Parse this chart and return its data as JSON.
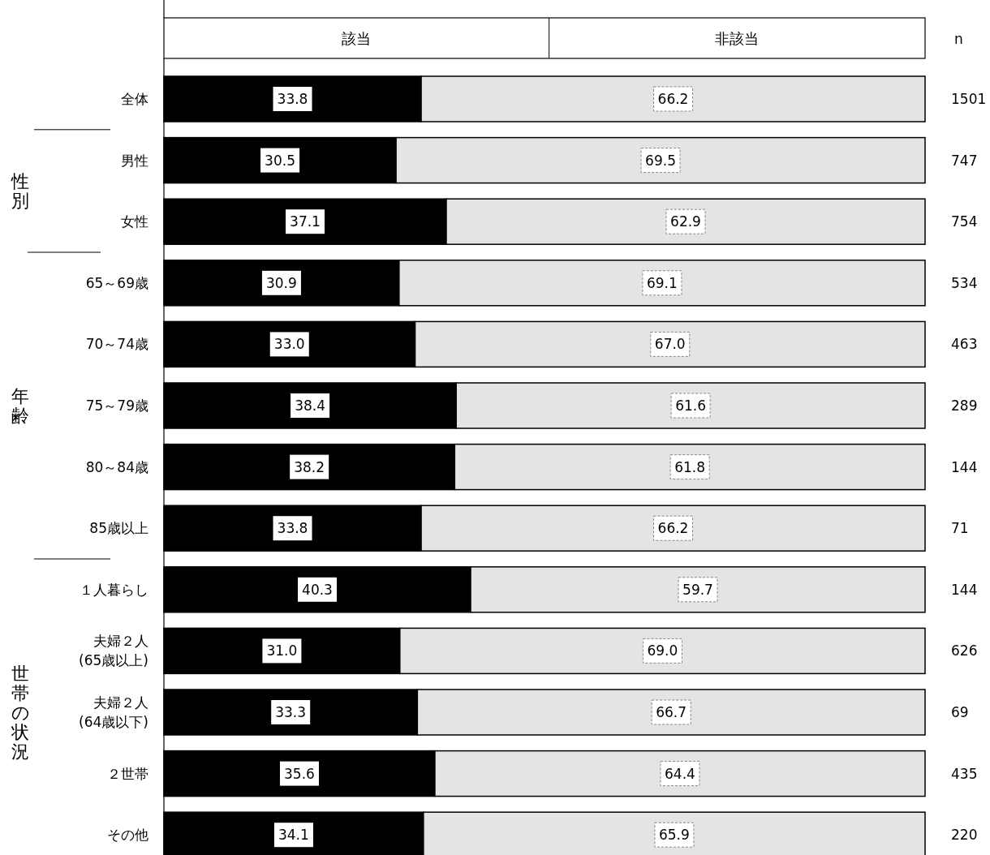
{
  "chart_data": {
    "type": "bar",
    "orientation": "horizontal",
    "stacked": true,
    "legend": "top",
    "xlim": [
      0,
      100
    ],
    "categories": [
      "全体",
      "男性",
      "女性",
      "65～69歳",
      "70～74歳",
      "75～79歳",
      "80～84歳",
      "85歳以上",
      "１人暮らし",
      "夫婦２人\n(65歳以上)",
      "夫婦２人\n(64歳以下)",
      "２世帯",
      "その他"
    ],
    "series": [
      {
        "name": "該当",
        "color": "#000000",
        "values": [
          33.8,
          30.5,
          37.1,
          30.9,
          33.0,
          38.4,
          38.2,
          33.8,
          40.3,
          31.0,
          33.3,
          35.6,
          34.1
        ],
        "value_labels": [
          "33.8",
          "30.5",
          "37.1",
          "30.9",
          "33.0",
          "38.4",
          "38.2",
          "33.8",
          "40.3",
          "31.0",
          "33.3",
          "35.6",
          "34.1"
        ]
      },
      {
        "name": "非該当",
        "color": "#e4e4e4",
        "values": [
          66.2,
          69.5,
          62.9,
          69.1,
          67.0,
          61.6,
          61.8,
          66.2,
          59.7,
          69.0,
          66.7,
          64.4,
          65.9
        ],
        "value_labels": [
          "66.2",
          "69.5",
          "62.9",
          "69.1",
          "67.0",
          "61.6",
          "61.8",
          "66.2",
          "59.7",
          "69.0",
          "66.7",
          "64.4",
          "65.9"
        ]
      }
    ],
    "annotations": [
      "n",
      "1501",
      "747",
      "754",
      "534",
      "463",
      "289",
      "144",
      "71",
      "144",
      "626",
      "69",
      "435",
      "220",
      "性別",
      "年齢",
      "世帯の状況"
    ]
  }
}
